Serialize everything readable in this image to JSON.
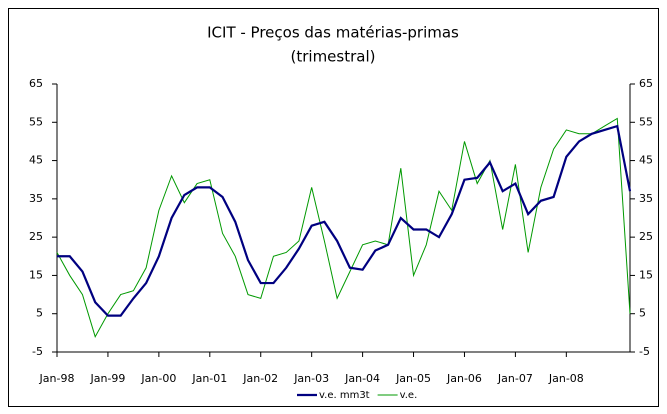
{
  "chart_data": {
    "type": "line",
    "title": "ICIT - Preços das matérias-primas",
    "subtitle": "(trimestral)",
    "categories": [
      "Jan-98",
      null,
      null,
      null,
      "Jan-99",
      null,
      null,
      null,
      "Jan-00",
      null,
      null,
      null,
      "Jan-01",
      null,
      null,
      null,
      "Jan-02",
      null,
      null,
      null,
      "Jan-03",
      null,
      null,
      null,
      "Jan-04",
      null,
      null,
      null,
      "Jan-05",
      null,
      null,
      null,
      "Jan-06",
      null,
      null,
      null,
      "Jan-07",
      null,
      null,
      null,
      "Jan-08",
      null,
      null,
      null,
      null,
      null
    ],
    "series": [
      {
        "name": "v.e. mm3t",
        "color": "#000080",
        "width": 2.2,
        "values": [
          20,
          20,
          16,
          8,
          4.5,
          4.5,
          9,
          13,
          20,
          30,
          36,
          38,
          38,
          35.5,
          29,
          19,
          13,
          13,
          17,
          22,
          28,
          29,
          24,
          17,
          16.5,
          21.5,
          23,
          30,
          27,
          27,
          25,
          31,
          40,
          40.5,
          44.5,
          37,
          39,
          31,
          34.5,
          35.5,
          46,
          50,
          52,
          53,
          54,
          37
        ]
      },
      {
        "name": "v.e.",
        "color": "#009900",
        "width": 1,
        "values": [
          21,
          15,
          10,
          -1,
          5,
          10,
          11,
          17,
          32,
          41,
          34,
          39,
          40,
          26,
          20,
          10,
          9,
          20,
          21,
          24,
          38,
          24,
          9,
          16,
          23,
          24,
          23,
          43,
          15,
          23,
          37,
          32,
          50,
          39,
          45,
          27,
          44,
          21,
          38,
          48,
          53,
          52,
          52,
          54,
          56,
          5
        ]
      }
    ],
    "ylim": [
      -5,
      65
    ],
    "yticks": [
      -5,
      5,
      15,
      25,
      35,
      45,
      55,
      65
    ],
    "y2lim": [
      -5,
      65
    ],
    "y2ticks": [
      -5,
      5,
      15,
      25,
      35,
      45,
      55,
      65
    ],
    "grid": false,
    "legend": "bottom"
  }
}
